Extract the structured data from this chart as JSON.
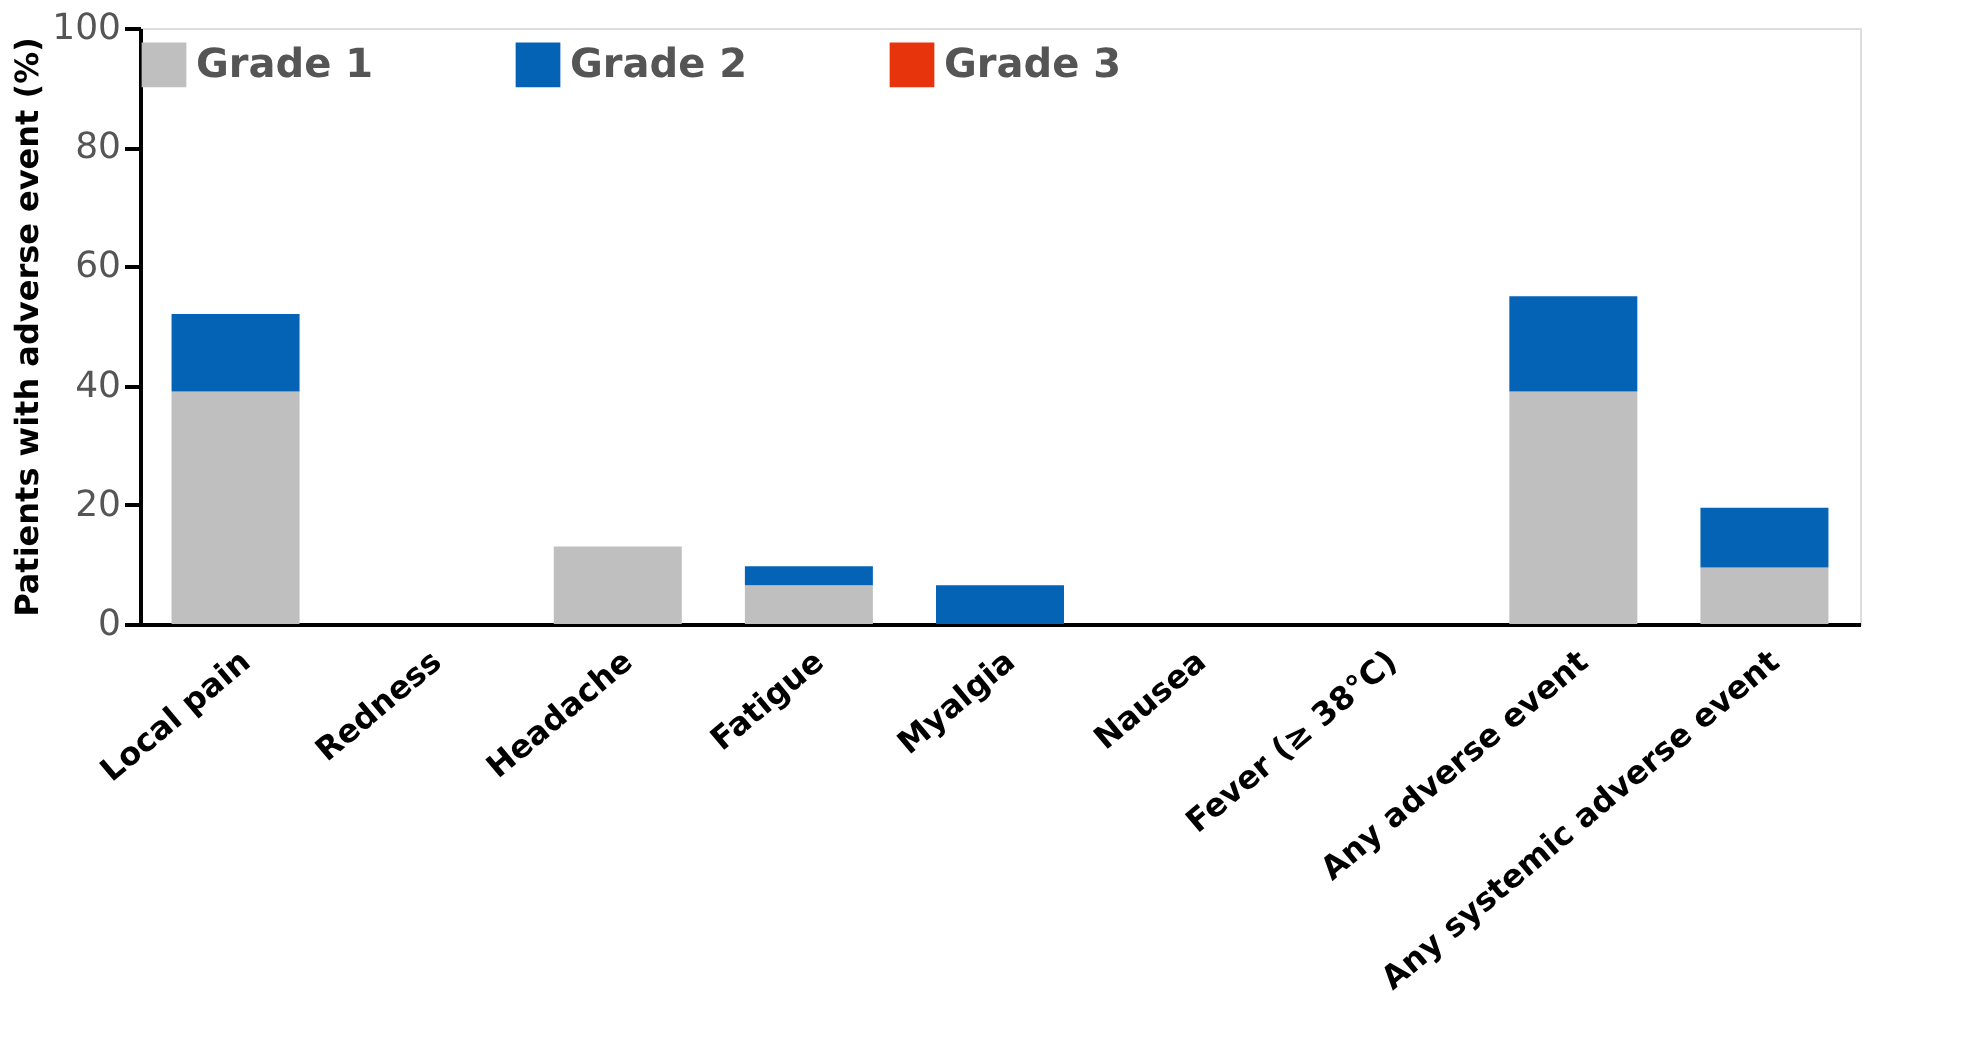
{
  "chart_data": {
    "type": "bar",
    "stacked": true,
    "ylabel": "Patients with adverse event (%)",
    "categories": [
      "Local pain",
      "Redness",
      "Headache",
      "Fatigue",
      "Myalgia",
      "Nausea",
      "Fever (≥ 38°C)",
      "Any adverse event",
      "Any systemic adverse event"
    ],
    "series": [
      {
        "name": "Grade 1",
        "color": "#bfbfbf",
        "values": [
          39,
          0,
          13,
          6.5,
          0,
          0,
          0,
          39,
          9.5
        ]
      },
      {
        "name": "Grade 2",
        "color": "#0563b5",
        "values": [
          13,
          0,
          0,
          3.2,
          6.5,
          0,
          0,
          16,
          10
        ]
      },
      {
        "name": "Grade 3",
        "color": "#e8340c",
        "values": [
          0,
          0,
          0,
          0,
          0,
          0,
          0,
          0,
          0
        ]
      }
    ],
    "ylim": [
      0,
      100
    ],
    "yticks": [
      0,
      20,
      40,
      60,
      80,
      100
    ],
    "grid": false,
    "legend": "top"
  }
}
